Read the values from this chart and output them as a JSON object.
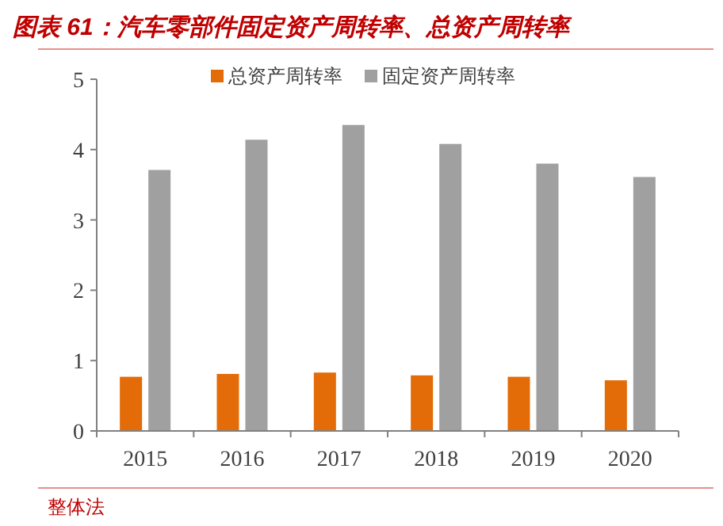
{
  "chart_data": {
    "type": "bar",
    "title": "图表 61：汽车零部件固定资产周转率、总资产周转率",
    "categories": [
      "2015",
      "2016",
      "2017",
      "2018",
      "2019",
      "2020"
    ],
    "series": [
      {
        "name": "总资产周转率",
        "color": "#e36c09",
        "values": [
          0.77,
          0.81,
          0.83,
          0.79,
          0.77,
          0.72
        ]
      },
      {
        "name": "固定资产周转率",
        "color": "#a0a0a0",
        "values": [
          3.71,
          4.14,
          4.35,
          4.08,
          3.8,
          3.61
        ]
      }
    ],
    "ylim": [
      0,
      5
    ],
    "yticks": [
      0,
      1,
      2,
      3,
      4,
      5
    ],
    "grid": false,
    "legend": "top",
    "annotations": [
      "整体法"
    ]
  }
}
